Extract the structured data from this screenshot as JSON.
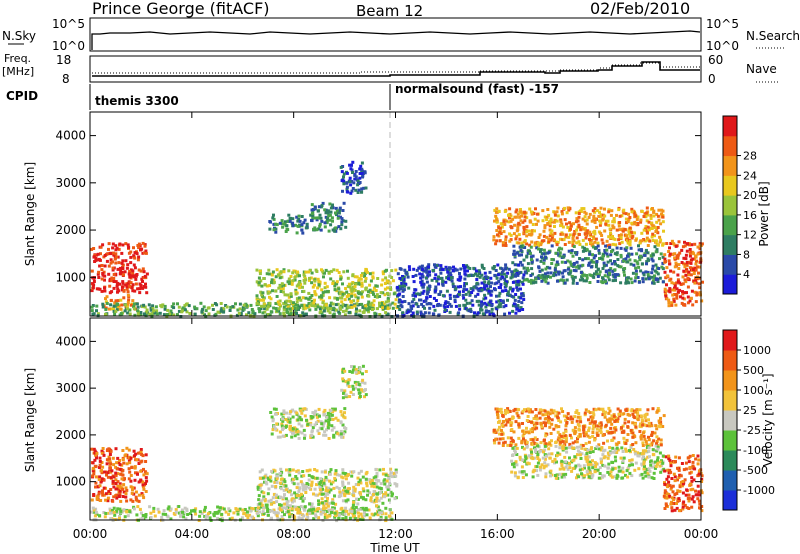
{
  "header": {
    "station": "Prince George (fitACF)",
    "beam": "Beam 12",
    "date": "02/Feb/2010"
  },
  "panels": {
    "nsky_label": "N.Sky",
    "nsky_tick_top": "10^5",
    "nsky_tick_bottom": "10^0",
    "nsearch_label": "N.Search",
    "freq_label_line1": "Freq.",
    "freq_label_line2": "[MHz]",
    "freq_tick_top": "18",
    "freq_tick_bottom": "8",
    "nave_tick_top": "60",
    "nave_tick_bottom": "0",
    "nave_label": "Nave",
    "cpid_label": "CPID",
    "cpid_1": "themis 3300",
    "cpid_2": "normalsound (fast) -157"
  },
  "chart_data": [
    {
      "type": "heatmap",
      "title": "",
      "xlabel": "",
      "ylabel": "Slant Range [km]",
      "x_ticks": [
        "00:00",
        "04:00",
        "08:00",
        "12:00",
        "16:00",
        "20:00",
        "00:00"
      ],
      "y_ticks": [
        1000,
        2000,
        3000,
        4000
      ],
      "x_range_hours": [
        0,
        24
      ],
      "y_range_km": [
        180,
        4500
      ],
      "colorbar": {
        "label": "Power [dB]",
        "ticks": [
          "4",
          "8",
          "12",
          "16",
          "20",
          "24",
          "28"
        ],
        "colors": [
          "#1c1cd9",
          "#2a4aa8",
          "#2e7d62",
          "#4aa24a",
          "#9ac43a",
          "#e8c81e",
          "#f2941a",
          "#ee5a14",
          "#e0181a"
        ]
      },
      "echo_regions": [
        {
          "t0": 0.0,
          "t1": 2.2,
          "r0": 700,
          "r1": 1750,
          "level": 8
        },
        {
          "t0": 0.5,
          "t1": 1.8,
          "r0": 350,
          "r1": 650,
          "level": 6
        },
        {
          "t0": 0.0,
          "t1": 11.8,
          "r0": 200,
          "r1": 480,
          "level": 3
        },
        {
          "t0": 6.5,
          "t1": 12.0,
          "r0": 350,
          "r1": 1200,
          "level": 4
        },
        {
          "t0": 7.0,
          "t1": 8.5,
          "r0": 1950,
          "r1": 2350,
          "level": 2
        },
        {
          "t0": 8.6,
          "t1": 10.0,
          "r0": 2000,
          "r1": 2600,
          "level": 2
        },
        {
          "t0": 9.8,
          "t1": 10.8,
          "r0": 2800,
          "r1": 3500,
          "level": 1
        },
        {
          "t0": 15.8,
          "t1": 22.5,
          "r0": 1700,
          "r1": 2500,
          "level": 6
        },
        {
          "t0": 16.5,
          "t1": 22.5,
          "r0": 900,
          "r1": 1700,
          "level": 2
        },
        {
          "t0": 22.5,
          "t1": 24.0,
          "r0": 400,
          "r1": 1800,
          "level": 7
        },
        {
          "t0": 12.0,
          "t1": 17.0,
          "r0": 200,
          "r1": 1300,
          "level": 1
        }
      ]
    },
    {
      "type": "heatmap",
      "title": "",
      "xlabel": "Time UT",
      "ylabel": "Slant Range [km]",
      "x_ticks": [
        "00:00",
        "04:00",
        "08:00",
        "12:00",
        "16:00",
        "20:00",
        "00:00"
      ],
      "y_ticks": [
        1000,
        2000,
        3000,
        4000
      ],
      "x_range_hours": [
        0,
        24
      ],
      "y_range_km": [
        180,
        4500
      ],
      "colorbar": {
        "label": "Velocity [m s⁻¹]",
        "ticks": [
          "1000",
          "500",
          "100",
          "25",
          "-25",
          "-100",
          "-500",
          "-1000"
        ],
        "colors": [
          "#1c2fd9",
          "#1f5fb0",
          "#2b8a5a",
          "#5cc23a",
          "#c8c8c0",
          "#f2c33a",
          "#f2941a",
          "#ee5a14",
          "#e0181a"
        ]
      },
      "echo_regions": [
        {
          "t0": 0.0,
          "t1": 2.2,
          "r0": 600,
          "r1": 1750,
          "level": 7
        },
        {
          "t0": 0.0,
          "t1": 11.8,
          "r0": 200,
          "r1": 500,
          "level": 4
        },
        {
          "t0": 6.5,
          "t1": 12.0,
          "r0": 350,
          "r1": 1300,
          "level": 4
        },
        {
          "t0": 7.0,
          "t1": 10.0,
          "r0": 1950,
          "r1": 2600,
          "level": 4
        },
        {
          "t0": 9.8,
          "t1": 10.8,
          "r0": 2800,
          "r1": 3500,
          "level": 4
        },
        {
          "t0": 15.8,
          "t1": 22.5,
          "r0": 1800,
          "r1": 2600,
          "level": 6
        },
        {
          "t0": 16.5,
          "t1": 22.5,
          "r0": 1100,
          "r1": 1800,
          "level": 4
        },
        {
          "t0": 22.5,
          "t1": 24.0,
          "r0": 400,
          "r1": 1600,
          "level": 7
        }
      ]
    }
  ]
}
